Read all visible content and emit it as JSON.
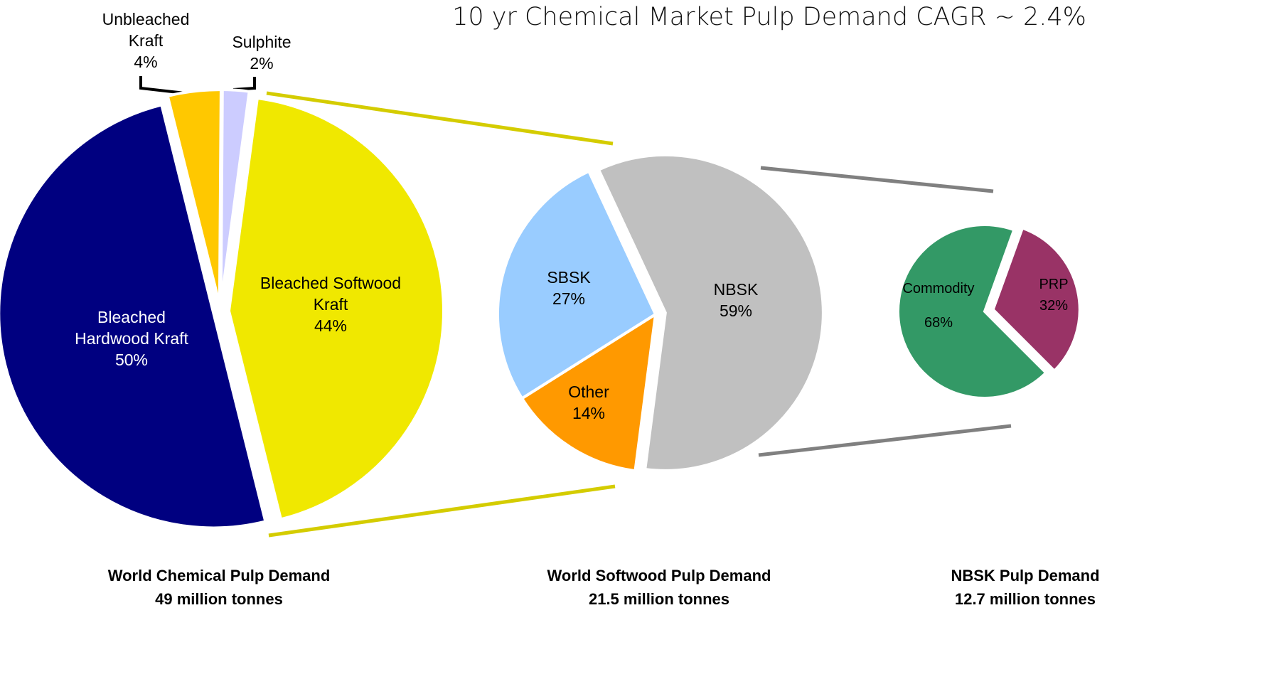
{
  "title": "10 yr Chemical Market Pulp Demand CAGR ~ 2.4%",
  "chart_data": [
    {
      "type": "pie",
      "caption": "World Chemical Pulp Demand",
      "total": "49 million tonnes",
      "categories": [
        "Bleached Hardwood Kraft",
        "Unbleached Kraft",
        "Sulphite",
        "Bleached Softwood Kraft"
      ],
      "values": [
        50,
        4,
        2,
        44
      ],
      "value_labels": [
        "50%",
        "4%",
        "2%",
        "44%"
      ],
      "colors": [
        "#000080",
        "#ffc800",
        "#ccccff",
        "#f0e800"
      ]
    },
    {
      "type": "pie",
      "caption": "World Softwood Pulp Demand",
      "total": "21.5 million tonnes",
      "categories": [
        "NBSK",
        "Other",
        "SBSK"
      ],
      "values": [
        59,
        14,
        27
      ],
      "value_labels": [
        "59%",
        "14%",
        "27%"
      ],
      "colors": [
        "#c0c0c0",
        "#ff9900",
        "#99ccff"
      ]
    },
    {
      "type": "pie",
      "caption": "NBSK Pulp Demand",
      "total": "12.7 million tonnes",
      "categories": [
        "Commodity",
        "PRP"
      ],
      "values": [
        68,
        32
      ],
      "value_labels": [
        "68%",
        "32%"
      ],
      "colors": [
        "#339966",
        "#993366"
      ]
    }
  ]
}
